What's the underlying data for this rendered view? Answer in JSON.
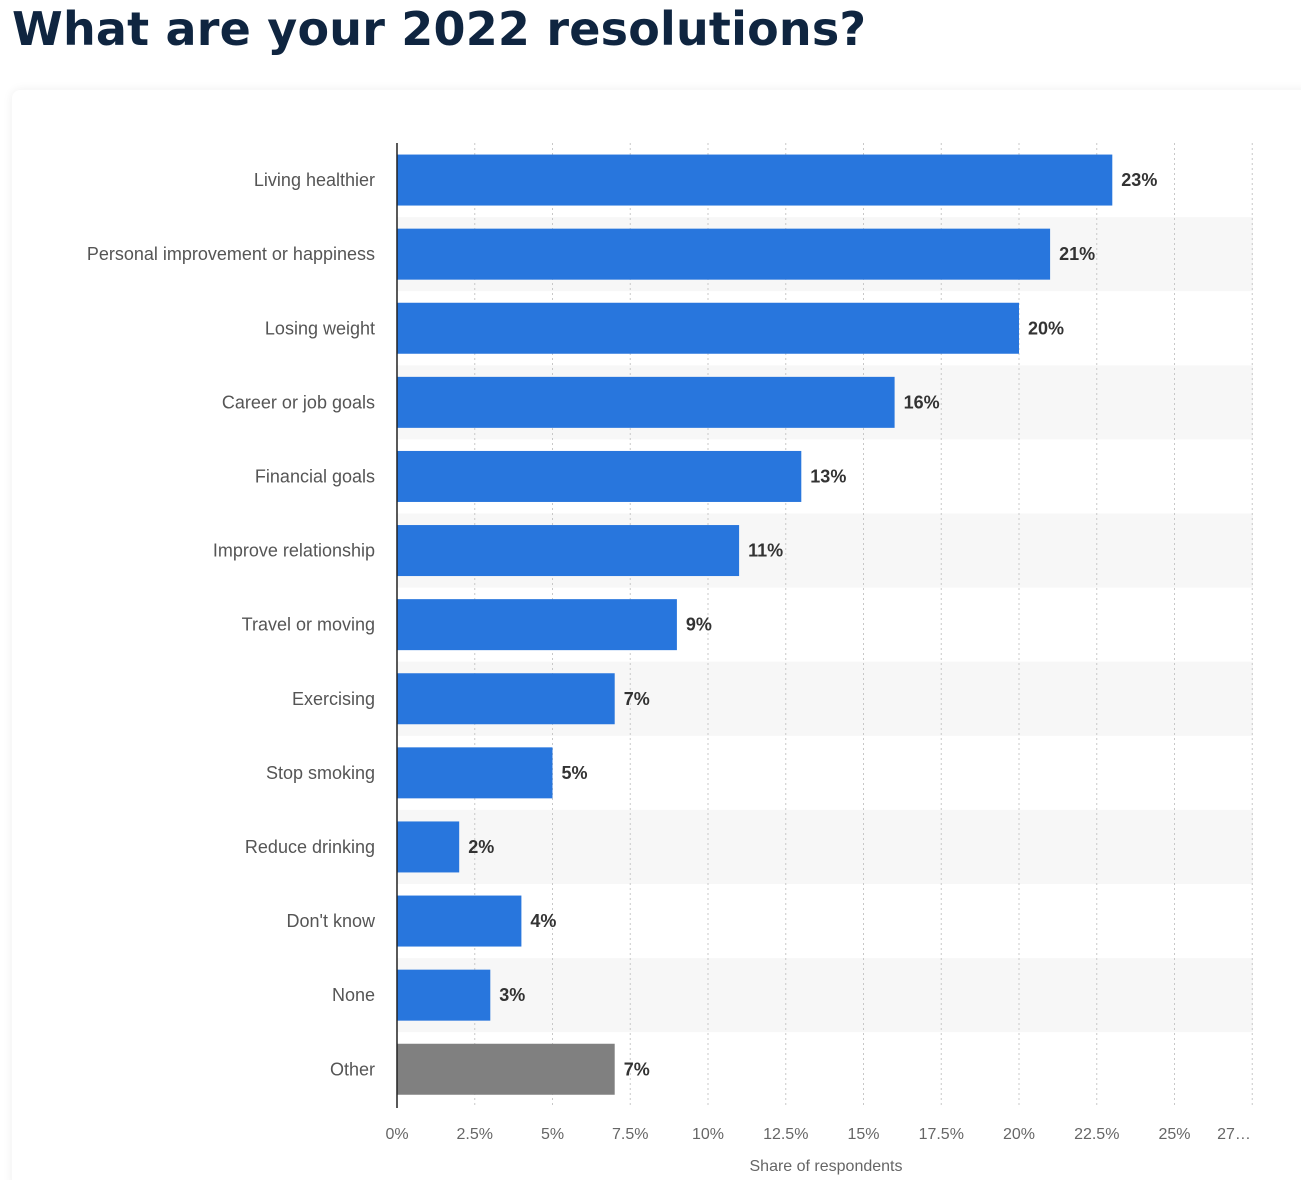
{
  "page": {
    "title": "What are your 2022 resolutions?"
  },
  "colors": {
    "bar": "#2876dd",
    "bar_other": "#808080",
    "band": "#f7f7f7",
    "grid": "#c8c8c8",
    "axis": "#222222"
  },
  "chart_data": {
    "type": "bar",
    "orientation": "horizontal",
    "categories": [
      "Living healthier",
      "Personal improvement or happiness",
      "Losing weight",
      "Career or job goals",
      "Financial goals",
      "Improve relationship",
      "Travel or moving",
      "Exercising",
      "Stop smoking",
      "Reduce drinking",
      "Don't know",
      "None",
      "Other"
    ],
    "values": [
      23,
      21,
      20,
      16,
      13,
      11,
      9,
      7,
      5,
      2,
      4,
      3,
      7
    ],
    "value_labels": [
      "23%",
      "21%",
      "20%",
      "16%",
      "13%",
      "11%",
      "9%",
      "7%",
      "5%",
      "2%",
      "4%",
      "3%",
      "7%"
    ],
    "highlight_gray": [
      "Other"
    ],
    "xlabel": "Share of respondents",
    "ylabel": "",
    "xlim": [
      0,
      27.5
    ],
    "x_ticks": [
      0,
      2.5,
      5,
      7.5,
      10,
      12.5,
      15,
      17.5,
      20,
      22.5,
      25,
      27.5
    ],
    "x_tick_labels": [
      "0%",
      "2.5%",
      "5%",
      "7.5%",
      "10%",
      "12.5%",
      "15%",
      "17.5%",
      "20%",
      "22.5%",
      "25%",
      "27…"
    ],
    "grid": true
  }
}
